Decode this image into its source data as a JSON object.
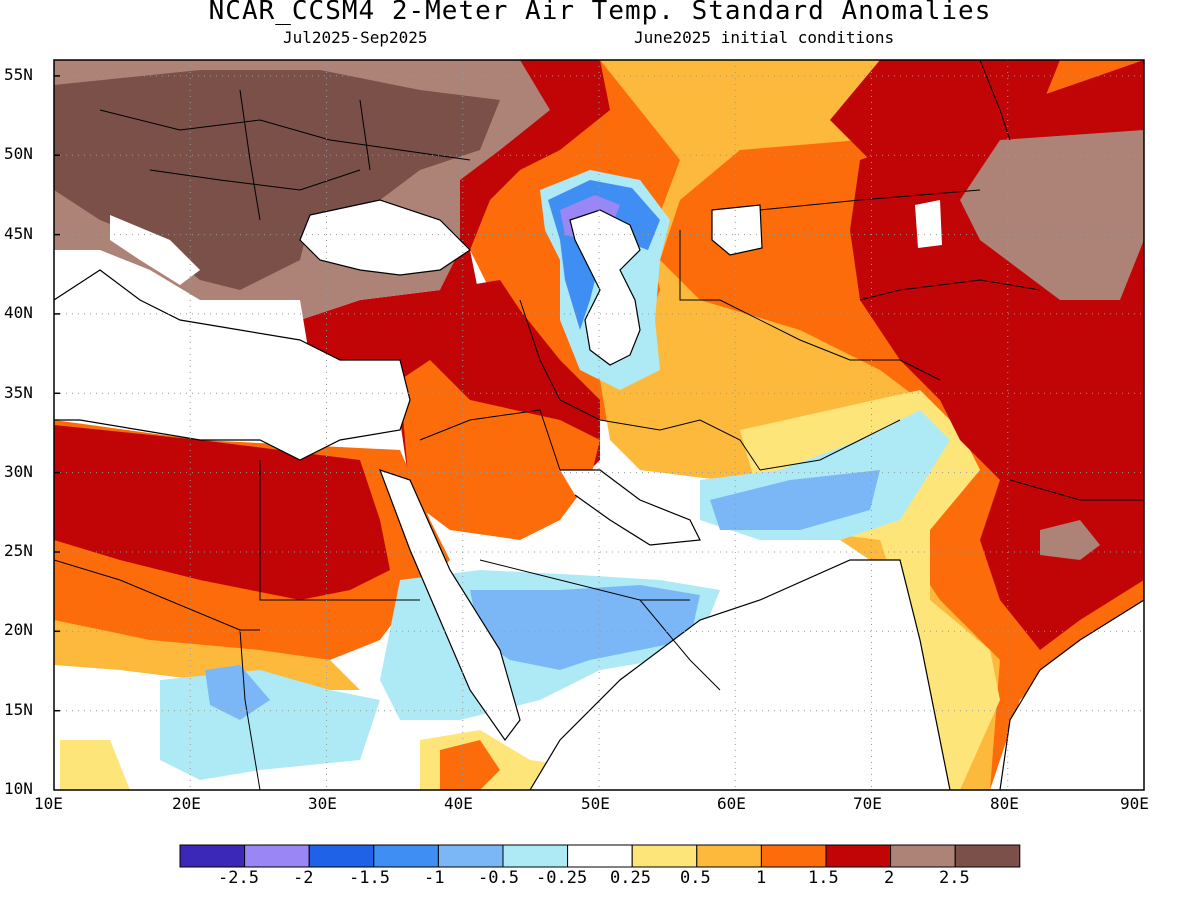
{
  "title": "NCAR_CCSM4 2-Meter Air Temp. Standard Anomalies",
  "subtitle_left": "Jul2025-Sep2025",
  "subtitle_right": "June2025 initial conditions",
  "map": {
    "lon_range": [
      10,
      90
    ],
    "lat_range": [
      10,
      56
    ],
    "lat_ticks": [
      "55N",
      "50N",
      "45N",
      "40N",
      "35N",
      "30N",
      "25N",
      "20N",
      "15N",
      "10N"
    ],
    "lon_ticks": [
      "10E",
      "20E",
      "30E",
      "40E",
      "50E",
      "60E",
      "70E",
      "80E",
      "90E"
    ],
    "gridlines": "dotted",
    "projection": "lat-lon"
  },
  "colorbar": {
    "colors": [
      "#3b28b8",
      "#9a87f5",
      "#1f62e8",
      "#3f8ef3",
      "#7bb7f7",
      "#aeeaf6",
      "#ffffff",
      "#fee57a",
      "#fdb93b",
      "#fd6c0a",
      "#c10506",
      "#ad8377",
      "#7a5048"
    ],
    "labels": [
      "-2.5",
      "-2",
      "-1.5",
      "-1",
      "-0.5",
      "-0.25",
      "0.25",
      "0.5",
      "1",
      "1.5",
      "2",
      "2.5"
    ]
  }
}
